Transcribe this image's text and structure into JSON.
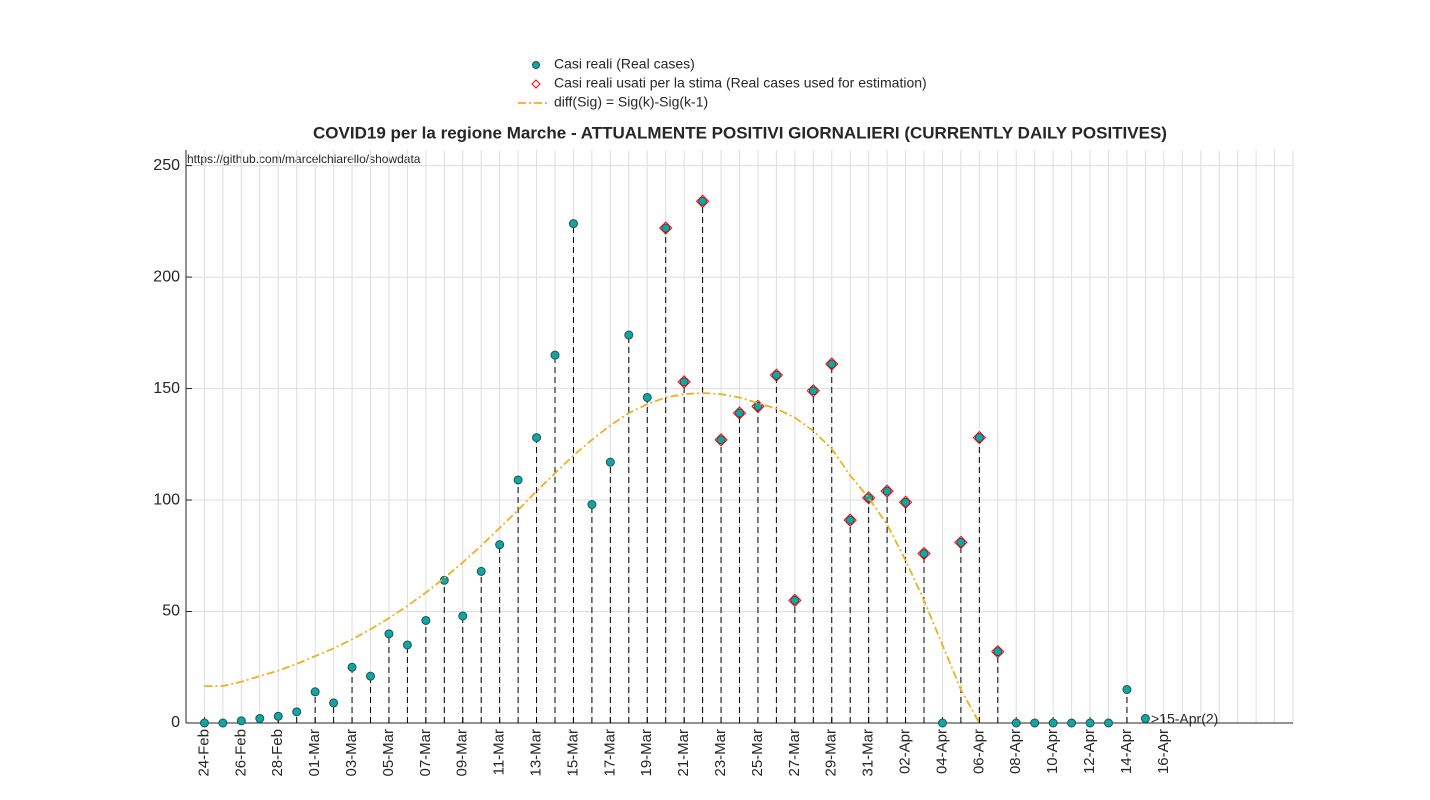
{
  "chart_data": {
    "type": "stem",
    "title": "COVID19 per la regione Marche - ATTUALMENTE POSITIVI GIORNALIERI (CURRENTLY DAILY POSITIVES)",
    "source": "https://github.com/marcelchiarello/showdata",
    "annotation": ">15-Apr(2)",
    "categories": [
      null,
      "24-Feb",
      null,
      "26-Feb",
      null,
      "28-Feb",
      null,
      "01-Mar",
      null,
      "03-Mar",
      null,
      "05-Mar",
      null,
      "07-Mar",
      null,
      "09-Mar",
      null,
      "11-Mar",
      null,
      "13-Mar",
      null,
      "15-Mar",
      null,
      "17-Mar",
      null,
      "19-Mar",
      null,
      "21-Mar",
      null,
      "23-Mar",
      null,
      "25-Mar",
      null,
      "27-Mar",
      null,
      "29-Mar",
      null,
      "31-Mar",
      null,
      "02-Apr",
      null,
      "04-Apr",
      null,
      "06-Apr",
      null,
      "08-Apr",
      null,
      "10-Apr",
      null,
      "12-Apr",
      null,
      "14-Apr",
      null,
      "16-Apr",
      null,
      null,
      null,
      null,
      null,
      null,
      null
    ],
    "series": [
      {
        "name": "Casi reali (Real cases)",
        "color": "#13a4a4",
        "marker": "circle",
        "values": [
          null,
          0,
          0,
          1,
          2,
          3,
          5,
          14,
          9,
          25,
          21,
          40,
          35,
          46,
          64,
          48,
          68,
          80,
          109,
          128,
          165,
          224,
          98,
          117,
          174,
          146,
          222,
          153,
          234,
          127,
          139,
          142,
          156,
          55,
          149,
          161,
          91,
          101,
          104,
          99,
          76,
          0,
          81,
          128,
          32,
          0,
          0,
          0,
          0,
          0,
          0,
          15,
          2,
          null,
          null,
          null,
          null,
          null,
          null,
          null,
          null
        ]
      },
      {
        "name": "Casi reali usati per la stima (Real cases used for estimation)",
        "color": "#ff0000",
        "marker": "diamond",
        "values": [
          null,
          null,
          null,
          null,
          null,
          null,
          null,
          null,
          null,
          null,
          null,
          null,
          null,
          null,
          null,
          null,
          null,
          null,
          null,
          null,
          null,
          null,
          null,
          null,
          null,
          null,
          222,
          153,
          234,
          127,
          139,
          142,
          156,
          55,
          149,
          161,
          91,
          101,
          104,
          99,
          76,
          null,
          81,
          128,
          32,
          null,
          null,
          null,
          null,
          null,
          null,
          null,
          null,
          null,
          null,
          null,
          null,
          null,
          null,
          null,
          null
        ]
      },
      {
        "name": "diff(Sig) = Sig(k)-Sig(k-1)",
        "color": "#edb120",
        "marker": "dashdot",
        "values": [
          null,
          16.5,
          16.6,
          18.5,
          21,
          23.5,
          26.5,
          30,
          33.5,
          37.5,
          42,
          47,
          52.5,
          58.5,
          65,
          72,
          79.5,
          87.5,
          95.5,
          104,
          112,
          120,
          127,
          133.5,
          139,
          143,
          146,
          147.5,
          148,
          147.5,
          146,
          143.5,
          141,
          137,
          131,
          123,
          111,
          101,
          89,
          73,
          55,
          35,
          15,
          0,
          null,
          null,
          null,
          null,
          null,
          null,
          null,
          null,
          null,
          null,
          null,
          null,
          null,
          null,
          null,
          null,
          null
        ]
      }
    ],
    "ylim": [
      0,
      257
    ],
    "yticks": [
      0,
      50,
      100,
      150,
      200,
      250
    ],
    "grid": true
  }
}
